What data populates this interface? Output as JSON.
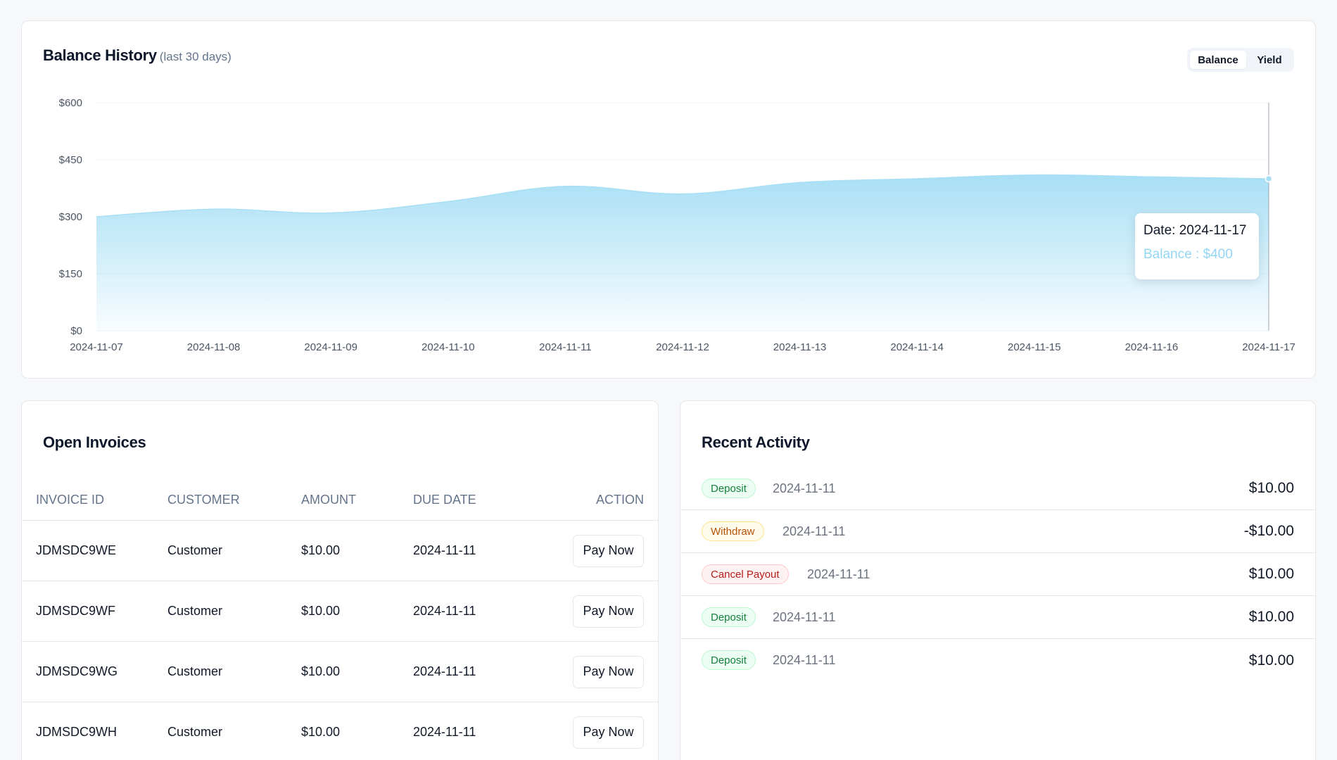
{
  "balance_history": {
    "title": "Balance History",
    "subtitle": "(last 30 days)",
    "toggle": {
      "active": "Balance",
      "inactive": "Yield"
    },
    "tooltip": {
      "date_text": "Date: 2024-11-17",
      "value_text": "Balance : $400"
    }
  },
  "chart_data": {
    "type": "area",
    "x": [
      "2024-11-07",
      "2024-11-08",
      "2024-11-09",
      "2024-11-10",
      "2024-11-11",
      "2024-11-12",
      "2024-11-13",
      "2024-11-14",
      "2024-11-15",
      "2024-11-16",
      "2024-11-17"
    ],
    "series": [
      {
        "values": [
          300,
          320,
          310,
          340,
          380,
          360,
          390,
          400,
          410,
          405,
          400
        ]
      }
    ],
    "ylim": [
      0,
      600
    ],
    "yticks": [
      0,
      150,
      300,
      450,
      600
    ],
    "ytick_labels": [
      "$0",
      "$150",
      "$300",
      "$450",
      "$600"
    ],
    "grid": true,
    "color": "#a8dff5"
  },
  "invoices": {
    "title": "Open Invoices",
    "headers": {
      "id": "INVOICE ID",
      "customer": "CUSTOMER",
      "amount": "AMOUNT",
      "due": "DUE DATE",
      "action": "ACTION"
    },
    "rows": [
      {
        "id": "JDMSDC9WE",
        "customer": "Customer",
        "amount": "$10.00",
        "due": "2024-11-11",
        "action": "Pay Now"
      },
      {
        "id": "JDMSDC9WF",
        "customer": "Customer",
        "amount": "$10.00",
        "due": "2024-11-11",
        "action": "Pay Now"
      },
      {
        "id": "JDMSDC9WG",
        "customer": "Customer",
        "amount": "$10.00",
        "due": "2024-11-11",
        "action": "Pay Now"
      },
      {
        "id": "JDMSDC9WH",
        "customer": "Customer",
        "amount": "$10.00",
        "due": "2024-11-11",
        "action": "Pay Now"
      }
    ]
  },
  "activity": {
    "title": "Recent Activity",
    "items": [
      {
        "type": "Deposit",
        "kind": "deposit",
        "date": "2024-11-11",
        "amount": "$10.00"
      },
      {
        "type": "Withdraw",
        "kind": "withdraw",
        "date": "2024-11-11",
        "amount": "-$10.00"
      },
      {
        "type": "Cancel Payout",
        "kind": "cancel",
        "date": "2024-11-11",
        "amount": "$10.00"
      },
      {
        "type": "Deposit",
        "kind": "deposit",
        "date": "2024-11-11",
        "amount": "$10.00"
      },
      {
        "type": "Deposit",
        "kind": "deposit",
        "date": "2024-11-11",
        "amount": "$10.00"
      }
    ]
  }
}
